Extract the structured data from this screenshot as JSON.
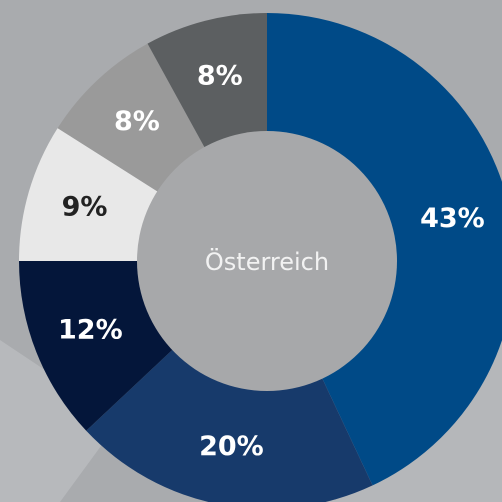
{
  "chart_data": {
    "type": "pie",
    "center_label": "Österreich",
    "values": [
      43,
      20,
      12,
      9,
      8,
      8
    ],
    "value_labels": [
      "43%",
      "20%",
      "12%",
      "9%",
      "8%",
      "8%"
    ],
    "colors": [
      "#004a87",
      "#173a6b",
      "#04163a",
      "#e8e8e8",
      "#9a9a9a",
      "#5c5f61"
    ]
  }
}
